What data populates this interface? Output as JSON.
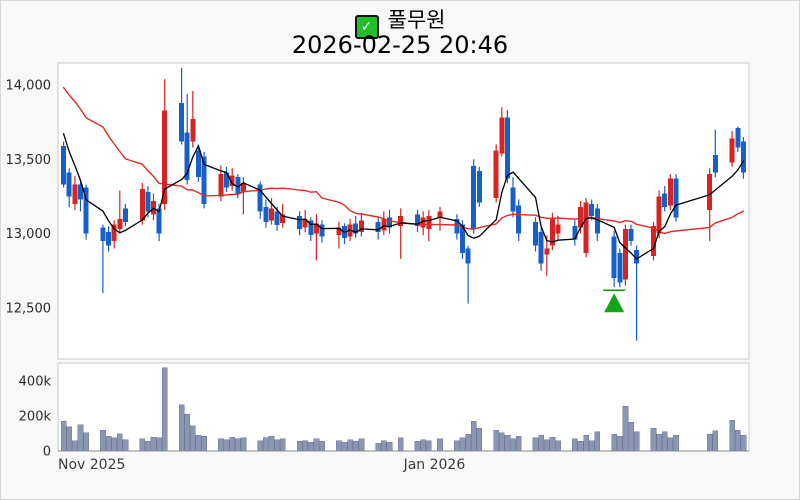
{
  "header": {
    "checkmark_icon": "✓",
    "title": "풀무원",
    "subtitle": "2026-02-25 20:46"
  },
  "colors": {
    "up_candle": "#d42424",
    "down_candle": "#1660c8",
    "ma_fast": "#000000",
    "ma_slow": "#e32929",
    "volume_bar": "#8b96b2",
    "buy_marker": "#17a317",
    "pane_border": "#c9c9c9",
    "baseline": "#8a8a8a",
    "tick_text": "#2b2b2b",
    "xtick_text": "#3c3c3c",
    "pane_bg": "#ffffff",
    "figure_bg": "#f8f8f8",
    "check_green": "#22bf2c"
  },
  "chart_data": {
    "type": "candlestick_with_volume",
    "symbol": "풀무원",
    "timestamp": "2026-02-25 20:46",
    "legend_position": "none",
    "grid": false,
    "price_axis": {
      "range": [
        12150,
        14150
      ],
      "ticks": [
        {
          "value": 14000,
          "label": "14,000"
        },
        {
          "value": 13500,
          "label": "13,500"
        },
        {
          "value": 13000,
          "label": "13,000"
        },
        {
          "value": 12500,
          "label": "12,500"
        }
      ]
    },
    "volume_axis": {
      "range_k": [
        0,
        500
      ],
      "ticks": [
        {
          "value_k": 400,
          "label": "400k"
        },
        {
          "value_k": 200,
          "label": "200k"
        },
        {
          "value_k": 0,
          "label": "0"
        }
      ]
    },
    "x_axis": {
      "domain": [
        "2025-10-26",
        "2026-02-26"
      ],
      "ticks": [
        {
          "date": "2025-11-01",
          "label": "Nov 2025"
        },
        {
          "date": "2026-01-01",
          "label": "Jan 2026"
        }
      ]
    },
    "moving_averages": {
      "fast_window": 5,
      "slow_window": 20
    },
    "prehistory_closes": [
      14250,
      14230,
      14210,
      14190,
      14170,
      14150,
      14130,
      14100,
      14070,
      14040,
      14010,
      13980,
      13950,
      13920,
      13890,
      13850,
      13800,
      13730,
      13650
    ],
    "buy_marker": {
      "date": "2026-02-02",
      "price": 12620
    },
    "candles_format": [
      "date",
      "open",
      "high",
      "low",
      "close",
      "volume_k"
    ],
    "candles": [
      [
        "2025-10-27",
        13590,
        13620,
        13310,
        13330,
        170
      ],
      [
        "2025-10-28",
        13410,
        13440,
        13180,
        13250,
        140
      ],
      [
        "2025-10-29",
        13200,
        13390,
        13160,
        13330,
        60
      ],
      [
        "2025-10-30",
        13330,
        13360,
        13150,
        13230,
        150
      ],
      [
        "2025-10-31",
        13310,
        13330,
        12960,
        13000,
        105
      ],
      [
        "2025-11-03",
        13040,
        13060,
        12600,
        12950,
        120
      ],
      [
        "2025-11-04",
        13010,
        13050,
        12880,
        12920,
        85
      ],
      [
        "2025-11-05",
        12950,
        13090,
        12900,
        13060,
        75
      ],
      [
        "2025-11-06",
        13030,
        13290,
        13000,
        13100,
        100
      ],
      [
        "2025-11-07",
        13170,
        13200,
        13050,
        13080,
        65
      ],
      [
        "2025-11-10",
        13090,
        13340,
        13060,
        13300,
        70
      ],
      [
        "2025-11-11",
        13280,
        13320,
        13110,
        13150,
        55
      ],
      [
        "2025-11-12",
        13130,
        13270,
        13090,
        13220,
        80
      ],
      [
        "2025-11-13",
        13170,
        13200,
        12950,
        13000,
        75
      ],
      [
        "2025-11-14",
        13200,
        14040,
        13160,
        13830,
        475
      ],
      [
        "2025-11-17",
        13880,
        14115,
        13600,
        13620,
        265
      ],
      [
        "2025-11-18",
        13680,
        13940,
        13330,
        13360,
        210
      ],
      [
        "2025-11-19",
        13620,
        13960,
        13580,
        13770,
        145
      ],
      [
        "2025-11-20",
        13560,
        13600,
        13350,
        13380,
        90
      ],
      [
        "2025-11-21",
        13520,
        13550,
        13170,
        13200,
        85
      ],
      [
        "2025-11-24",
        13250,
        13460,
        13220,
        13400,
        70
      ],
      [
        "2025-11-25",
        13410,
        13450,
        13280,
        13310,
        65
      ],
      [
        "2025-11-26",
        13320,
        13440,
        13290,
        13390,
        80
      ],
      [
        "2025-11-27",
        13380,
        13400,
        13240,
        13270,
        70
      ],
      [
        "2025-11-28",
        13280,
        13380,
        13130,
        13340,
        75
      ],
      [
        "2025-12-01",
        13330,
        13350,
        13100,
        13150,
        60
      ],
      [
        "2025-12-02",
        13180,
        13230,
        13040,
        13080,
        75
      ],
      [
        "2025-12-03",
        13090,
        13240,
        13060,
        13170,
        85
      ],
      [
        "2025-12-04",
        13150,
        13180,
        13020,
        13060,
        65
      ],
      [
        "2025-12-05",
        13070,
        13200,
        13040,
        13130,
        70
      ],
      [
        "2025-12-08",
        13120,
        13150,
        12990,
        13030,
        55
      ],
      [
        "2025-12-09",
        13040,
        13160,
        13010,
        13100,
        60
      ],
      [
        "2025-12-10",
        13090,
        13110,
        12950,
        12990,
        50
      ],
      [
        "2025-12-11",
        13000,
        13130,
        12820,
        13070,
        70
      ],
      [
        "2025-12-12",
        13060,
        13090,
        12940,
        12980,
        55
      ],
      [
        "2025-12-15",
        12990,
        13080,
        12900,
        13040,
        60
      ],
      [
        "2025-12-16",
        13050,
        13070,
        12930,
        12970,
        50
      ],
      [
        "2025-12-17",
        12980,
        13100,
        12950,
        13060,
        65
      ],
      [
        "2025-12-18",
        13070,
        13120,
        12970,
        13000,
        55
      ],
      [
        "2025-12-19",
        13010,
        13140,
        12980,
        13090,
        70
      ],
      [
        "2025-12-22",
        13080,
        13110,
        12960,
        13010,
        45
      ],
      [
        "2025-12-23",
        13020,
        13150,
        12990,
        13100,
        60
      ],
      [
        "2025-12-24",
        13110,
        13160,
        13000,
        13040,
        50
      ],
      [
        "2025-12-26",
        13050,
        13170,
        12830,
        13120,
        75
      ],
      [
        "2025-12-29",
        13130,
        13160,
        13010,
        13050,
        55
      ],
      [
        "2025-12-30",
        13040,
        13150,
        12990,
        13110,
        65
      ],
      [
        "2025-12-31",
        13030,
        13160,
        12950,
        13120,
        60
      ],
      [
        "2026-01-02",
        13110,
        13180,
        13020,
        13150,
        70
      ],
      [
        "2026-01-05",
        13100,
        13130,
        12960,
        13000,
        60
      ],
      [
        "2026-01-06",
        13060,
        13090,
        12830,
        12870,
        75
      ],
      [
        "2026-01-07",
        12900,
        12920,
        12530,
        12800,
        95
      ],
      [
        "2026-01-08",
        13455,
        13500,
        13000,
        13030,
        170
      ],
      [
        "2026-01-09",
        13420,
        13450,
        13180,
        13210,
        130
      ],
      [
        "2026-01-12",
        13240,
        13600,
        13210,
        13560,
        120
      ],
      [
        "2026-01-13",
        13540,
        13850,
        13520,
        13780,
        105
      ],
      [
        "2026-01-14",
        13780,
        13830,
        13340,
        13370,
        90
      ],
      [
        "2026-01-15",
        13310,
        13380,
        13110,
        13150,
        70
      ],
      [
        "2026-01-16",
        13190,
        13230,
        12950,
        13000,
        85
      ],
      [
        "2026-01-19",
        13080,
        13110,
        12880,
        12920,
        75
      ],
      [
        "2026-01-20",
        13010,
        13040,
        12750,
        12800,
        90
      ],
      [
        "2026-01-21",
        12860,
        12990,
        12715,
        12900,
        65
      ],
      [
        "2026-01-22",
        12920,
        13140,
        12890,
        13100,
        80
      ],
      [
        "2026-01-23",
        13000,
        13120,
        12960,
        13060,
        60
      ],
      [
        "2026-01-26",
        13050,
        13090,
        12920,
        12960,
        70
      ],
      [
        "2026-01-27",
        13040,
        13220,
        13000,
        13180,
        55
      ],
      [
        "2026-01-28",
        12870,
        13240,
        12840,
        13210,
        90
      ],
      [
        "2026-01-29",
        13200,
        13230,
        13090,
        13120,
        60
      ],
      [
        "2026-01-30",
        13170,
        13200,
        12950,
        13000,
        110
      ],
      [
        "2026-02-02",
        12980,
        13020,
        12640,
        12700,
        95
      ],
      [
        "2026-02-03",
        12870,
        12900,
        12640,
        12670,
        85
      ],
      [
        "2026-02-04",
        12690,
        13060,
        12650,
        13030,
        255
      ],
      [
        "2026-02-05",
        13030,
        13060,
        12920,
        12950,
        165
      ],
      [
        "2026-02-06",
        12890,
        12920,
        12280,
        12800,
        110
      ],
      [
        "2026-02-09",
        12850,
        13080,
        12820,
        13050,
        130
      ],
      [
        "2026-02-10",
        13000,
        13290,
        12970,
        13250,
        95
      ],
      [
        "2026-02-11",
        13270,
        13320,
        13150,
        13180,
        110
      ],
      [
        "2026-02-12",
        13190,
        13400,
        13160,
        13370,
        75
      ],
      [
        "2026-02-13",
        13370,
        13400,
        13080,
        13110,
        90
      ],
      [
        "2026-02-19",
        13160,
        13440,
        12950,
        13400,
        95
      ],
      [
        "2026-02-20",
        13530,
        13700,
        13380,
        13410,
        115
      ],
      [
        "2026-02-23",
        13480,
        13690,
        13450,
        13640,
        175
      ],
      [
        "2026-02-24",
        13710,
        13720,
        13550,
        13580,
        120
      ],
      [
        "2026-02-25",
        13620,
        13650,
        13370,
        13410,
        90
      ]
    ]
  }
}
